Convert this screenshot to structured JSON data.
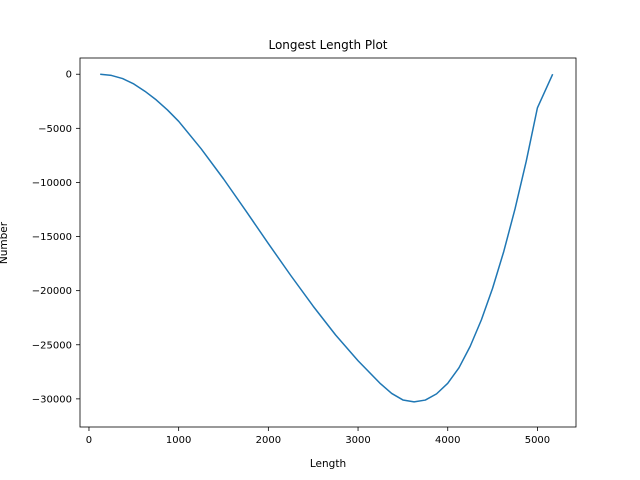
{
  "chart_data": {
    "type": "line",
    "title": "Longest Length Plot",
    "xlabel": "Length",
    "ylabel": "Number",
    "xlim": [
      -100,
      5430
    ],
    "ylim": [
      -32600,
      1500
    ],
    "xticks": [
      0,
      1000,
      2000,
      3000,
      4000,
      5000
    ],
    "xtick_labels": [
      "0",
      "1000",
      "2000",
      "3000",
      "4000",
      "5000"
    ],
    "yticks": [
      0,
      -5000,
      -10000,
      -15000,
      -20000,
      -25000,
      -30000
    ],
    "ytick_labels": [
      "0",
      "−5000",
      "−10000",
      "−15000",
      "−20000",
      "−25000",
      "−30000"
    ],
    "grid": false,
    "legend": false,
    "series": [
      {
        "color": "#1f77b4",
        "x": [
          125,
          250,
          375,
          500,
          625,
          750,
          875,
          1000,
          1250,
          1500,
          1750,
          2000,
          2250,
          2500,
          2750,
          3000,
          3250,
          3375,
          3500,
          3625,
          3750,
          3875,
          4000,
          4125,
          4250,
          4375,
          4500,
          4625,
          4750,
          4875,
          5000,
          5170
        ],
        "y": [
          0,
          -110,
          -400,
          -900,
          -1580,
          -2370,
          -3300,
          -4350,
          -6880,
          -9670,
          -12630,
          -15650,
          -18600,
          -21440,
          -24100,
          -26480,
          -28600,
          -29500,
          -30100,
          -30280,
          -30110,
          -29540,
          -28560,
          -27130,
          -25150,
          -22700,
          -19780,
          -16370,
          -12450,
          -8050,
          -3100,
          0
        ]
      }
    ]
  }
}
